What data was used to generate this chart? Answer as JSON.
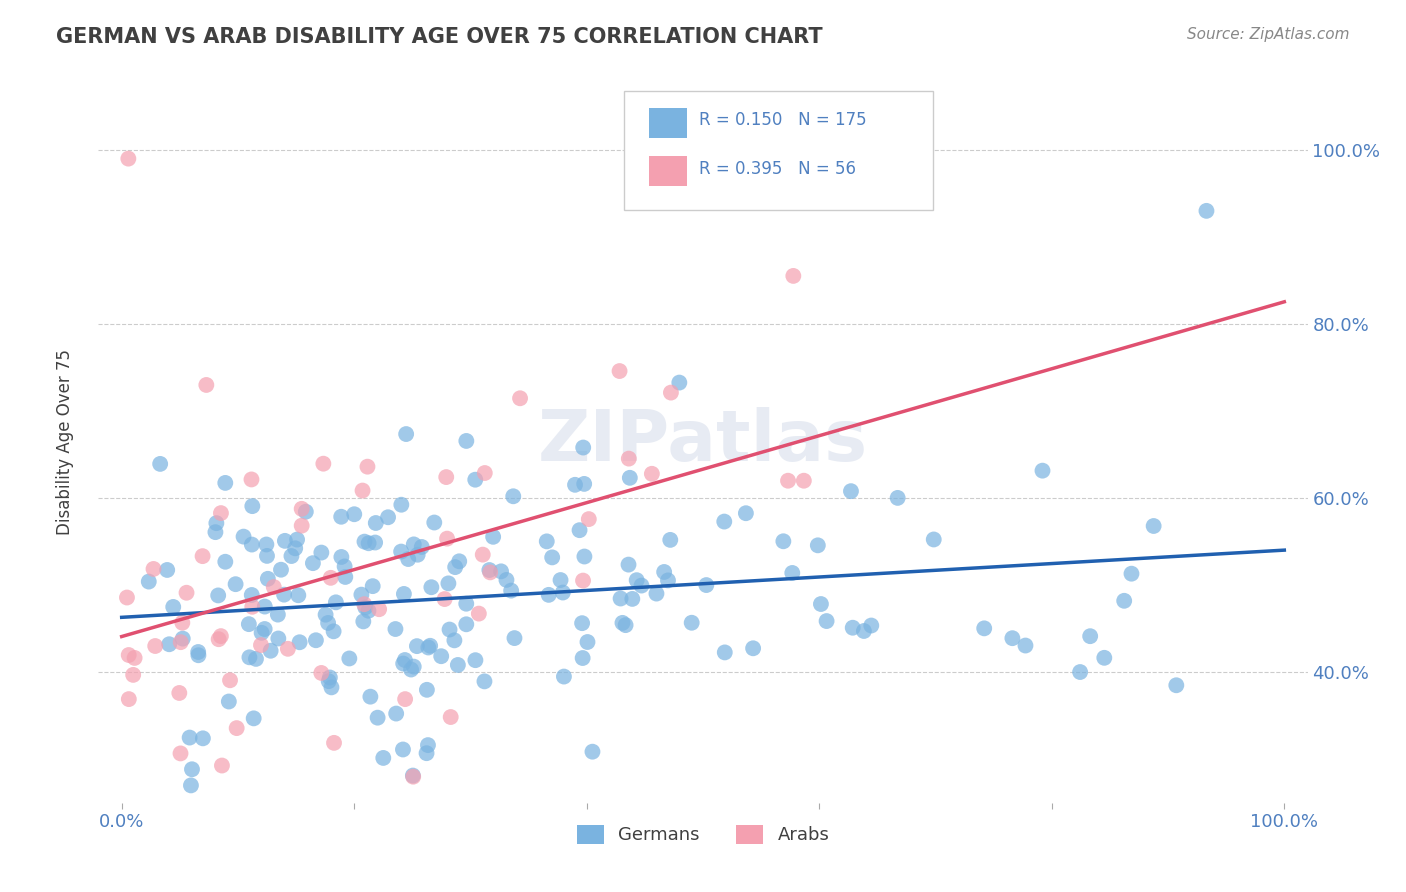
{
  "title": "GERMAN VS ARAB DISABILITY AGE OVER 75 CORRELATION CHART",
  "source": "Source: ZipAtlas.com",
  "ylabel": "Disability Age Over 75",
  "y_tick_labels_right": [
    "40.0%",
    "60.0%",
    "80.0%",
    "100.0%"
  ],
  "german_R": 0.15,
  "german_N": 175,
  "arab_R": 0.395,
  "arab_N": 56,
  "german_color": "#7ab3e0",
  "arab_color": "#f4a0b0",
  "german_line_color": "#2060b0",
  "arab_line_color": "#e05070",
  "legend_german_label": "Germans",
  "legend_arab_label": "Arabs",
  "background_color": "#ffffff",
  "grid_color": "#cccccc",
  "title_color": "#404040",
  "axis_label_color": "#404040",
  "tick_label_color": "#5080c0",
  "german_seed": 42,
  "arab_seed": 7
}
